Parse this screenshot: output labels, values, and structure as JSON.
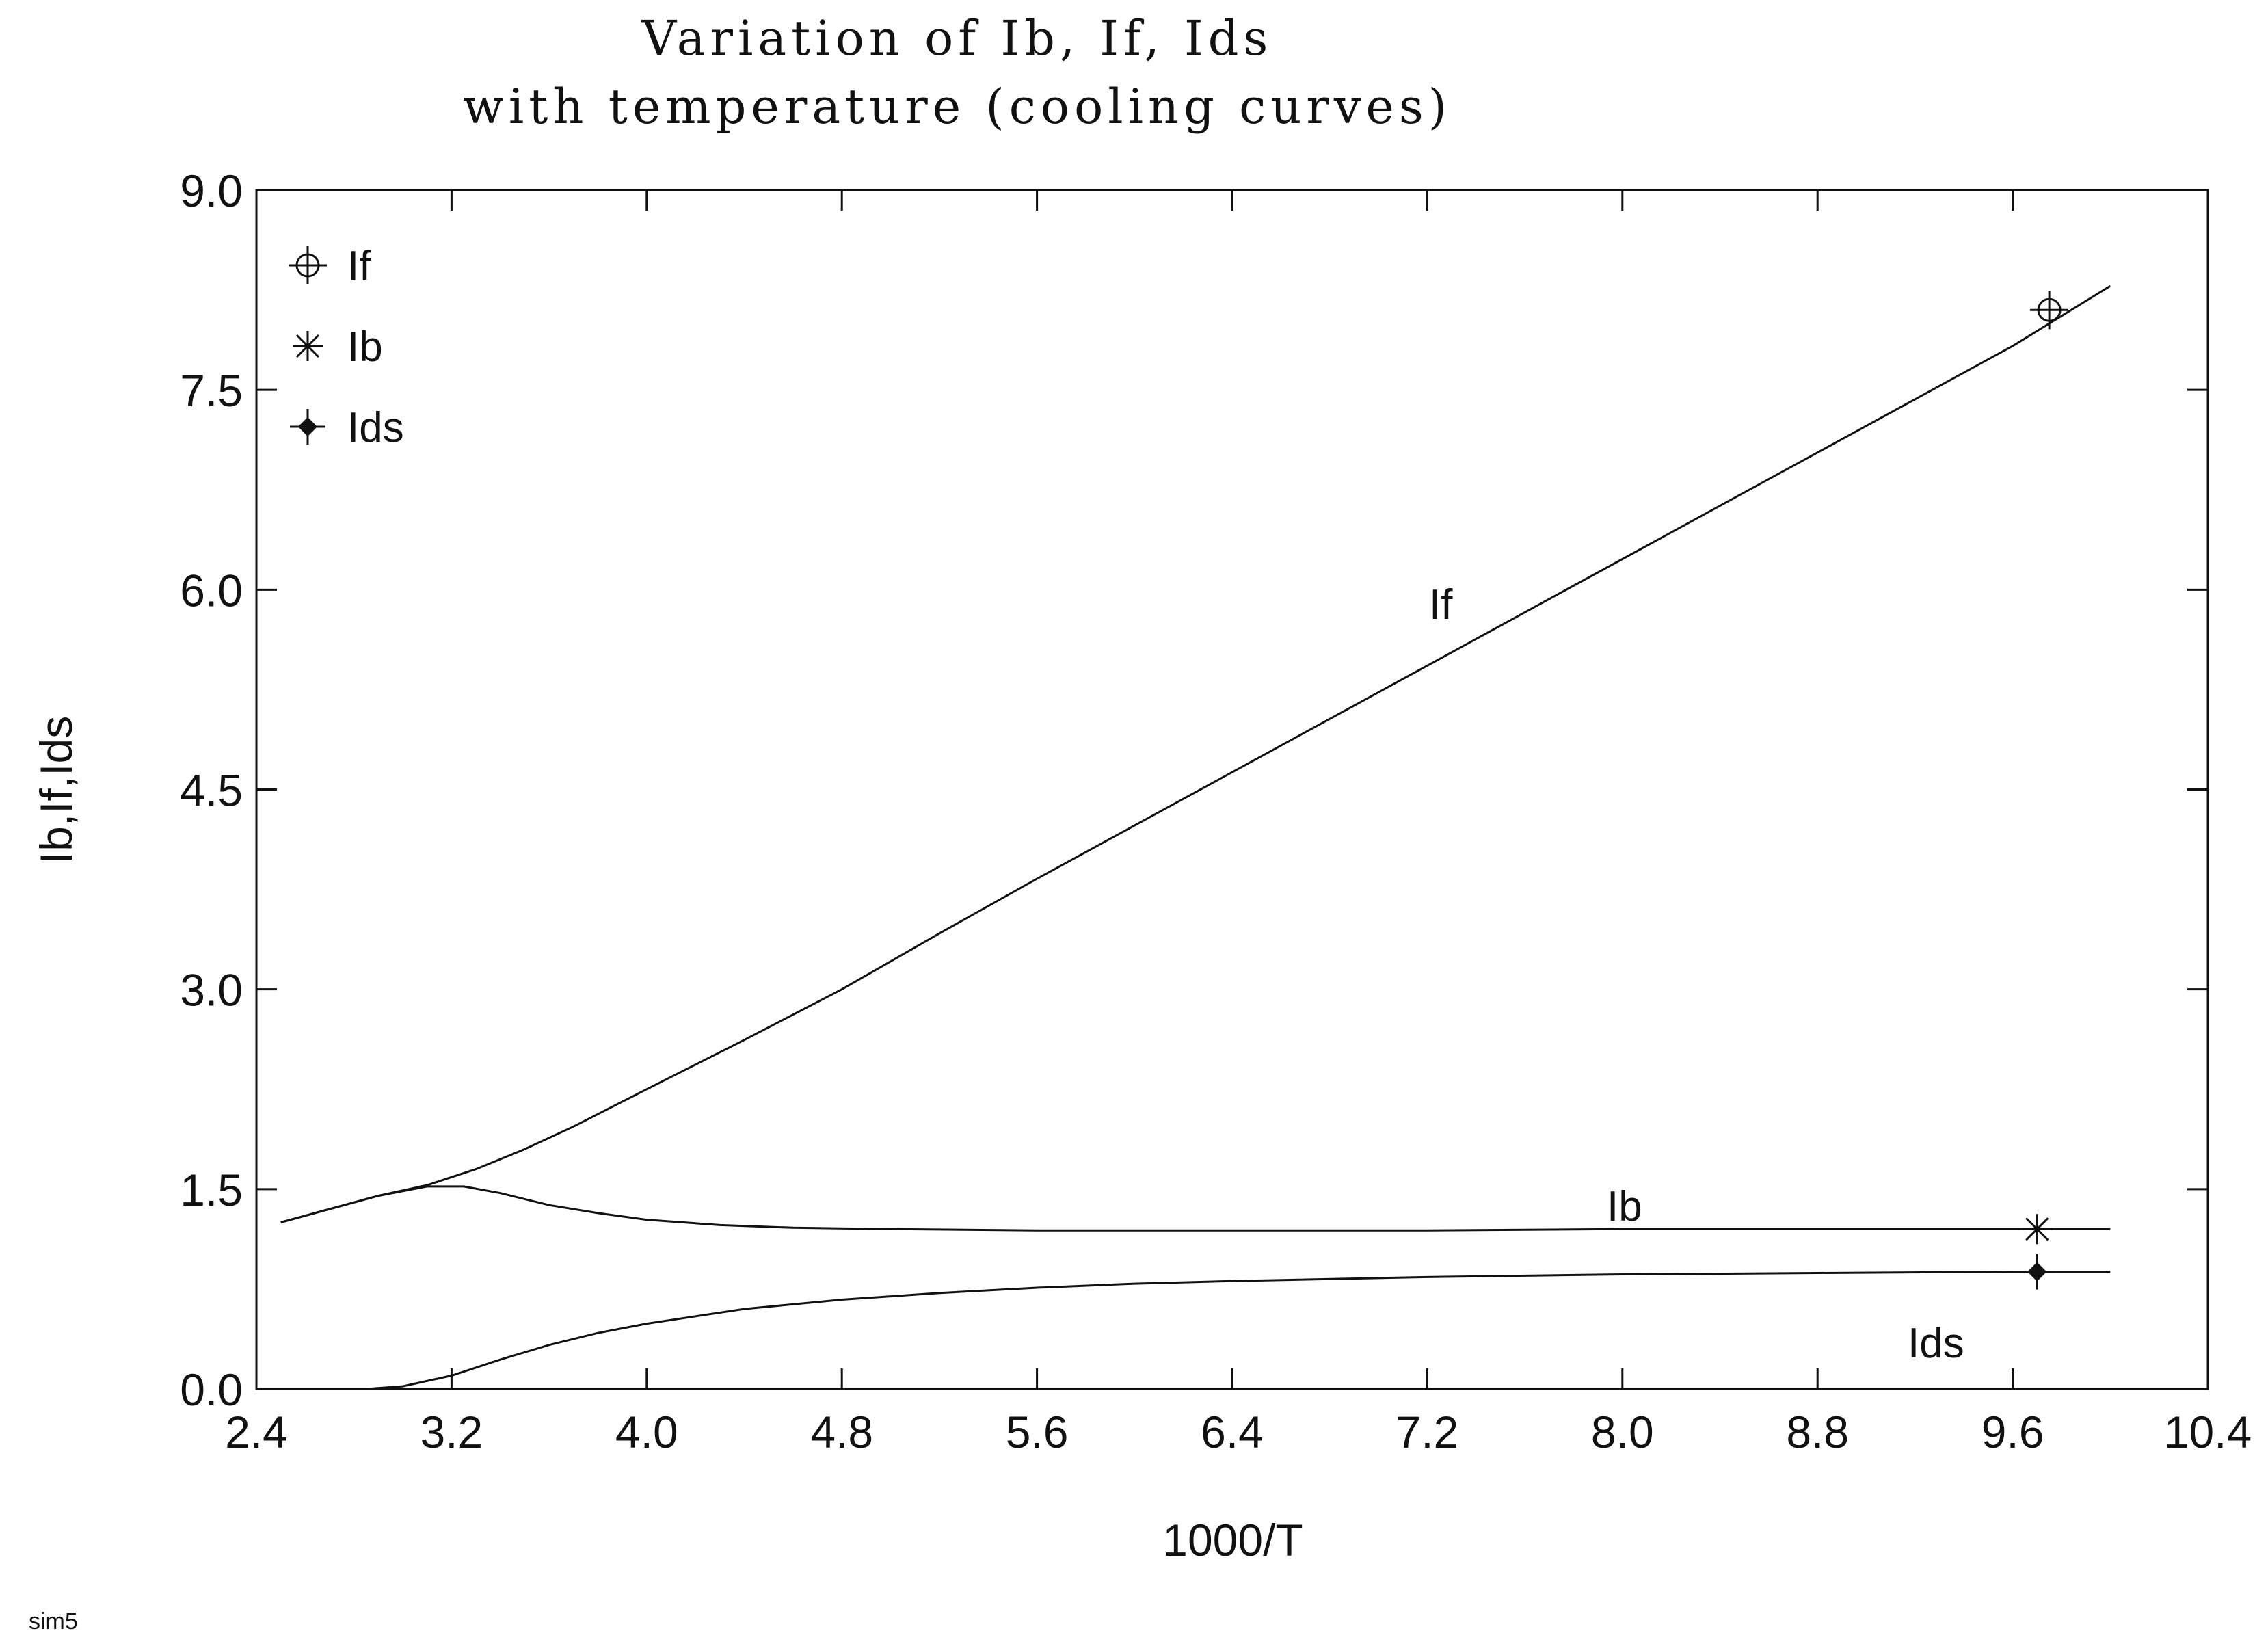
{
  "chart_data": {
    "type": "line",
    "title": "Variation of Ib, If, Ids",
    "subtitle": "with temperature (cooling curves)",
    "xlabel": "1000/T",
    "ylabel": "Ib,If,Ids",
    "xlim": [
      2.4,
      10.4
    ],
    "ylim": [
      0.0,
      9.0
    ],
    "xticks": [
      2.4,
      3.2,
      4.0,
      4.8,
      5.6,
      6.4,
      7.2,
      8.0,
      8.8,
      9.6,
      10.4
    ],
    "yticks": [
      0.0,
      1.5,
      3.0,
      4.5,
      6.0,
      7.5,
      9.0
    ],
    "xtick_labels": [
      "2.4",
      "3.2",
      "4.0",
      "4.8",
      "5.6",
      "6.4",
      "7.2",
      "8.0",
      "8.8",
      "9.6",
      "10.4"
    ],
    "ytick_labels": [
      "0.0",
      "1.5",
      "3.0",
      "4.5",
      "6.0",
      "7.5",
      "9.0"
    ],
    "grid": false,
    "legend_position": "top-left",
    "series": [
      {
        "name": "If",
        "marker": "circle-plus",
        "curve_label": "If",
        "x": [
          2.5,
          2.7,
          2.9,
          3.1,
          3.3,
          3.5,
          3.7,
          4.0,
          4.4,
          4.8,
          5.2,
          5.6,
          6.0,
          6.4,
          6.8,
          7.2,
          7.6,
          8.0,
          8.4,
          8.8,
          9.2,
          9.6,
          10.0
        ],
        "y": [
          1.25,
          1.35,
          1.45,
          1.53,
          1.65,
          1.8,
          1.97,
          2.25,
          2.62,
          3.0,
          3.42,
          3.83,
          4.23,
          4.63,
          5.03,
          5.43,
          5.83,
          6.23,
          6.63,
          7.03,
          7.43,
          7.83,
          8.28
        ],
        "marker_points": [
          {
            "x": 9.75,
            "y": 8.1
          }
        ]
      },
      {
        "name": "Ib",
        "marker": "asterisk",
        "curve_label": "Ib",
        "x": [
          2.5,
          2.7,
          2.9,
          3.1,
          3.25,
          3.4,
          3.6,
          3.8,
          4.0,
          4.3,
          4.6,
          5.0,
          5.6,
          6.4,
          7.2,
          8.0,
          8.8,
          9.6,
          10.0
        ],
        "y": [
          1.25,
          1.35,
          1.45,
          1.52,
          1.52,
          1.47,
          1.38,
          1.32,
          1.27,
          1.23,
          1.21,
          1.2,
          1.19,
          1.19,
          1.19,
          1.2,
          1.2,
          1.2,
          1.2
        ],
        "marker_points": [
          {
            "x": 9.7,
            "y": 1.2
          }
        ]
      },
      {
        "name": "Ids",
        "marker": "filled-diamond-plus",
        "curve_label": "Ids",
        "x": [
          2.85,
          3.0,
          3.2,
          3.4,
          3.6,
          3.8,
          4.0,
          4.4,
          4.8,
          5.2,
          5.6,
          6.0,
          6.4,
          7.2,
          8.0,
          8.8,
          9.6,
          10.0
        ],
        "y": [
          0.0,
          0.02,
          0.1,
          0.22,
          0.33,
          0.42,
          0.49,
          0.6,
          0.67,
          0.72,
          0.76,
          0.79,
          0.81,
          0.84,
          0.86,
          0.87,
          0.88,
          0.88
        ],
        "marker_points": [
          {
            "x": 9.7,
            "y": 0.88
          }
        ]
      }
    ]
  },
  "footer": {
    "label": "sim5"
  }
}
